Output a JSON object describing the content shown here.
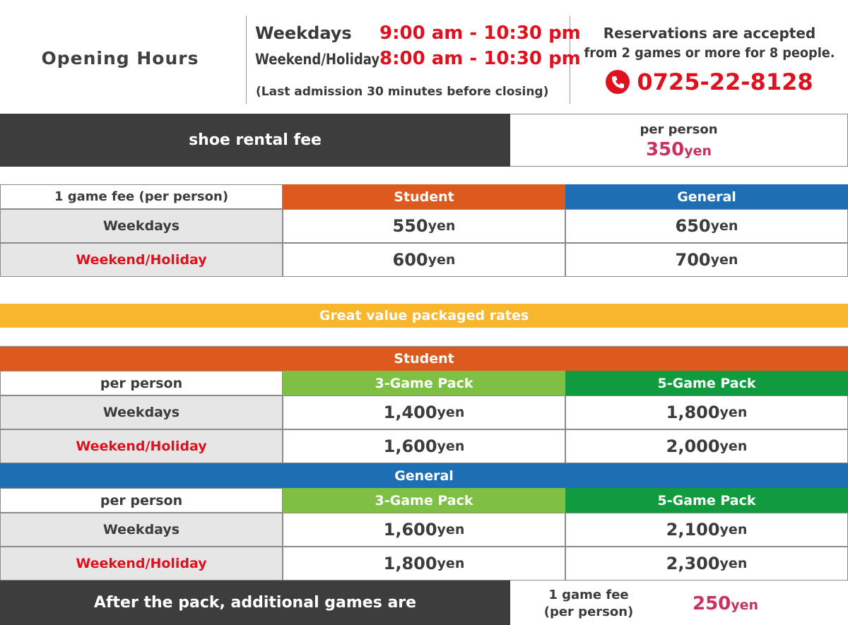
{
  "hours": {
    "title": "Opening Hours",
    "weekdays_label": "Weekdays",
    "weekdays_time": "9:00 am - 10:30 pm",
    "weekend_label": "Weekend/Holiday",
    "weekend_time": "8:00 am - 10:30 pm",
    "note": "(Last admission 30 minutes before closing)"
  },
  "reservation": {
    "line1": "Reservations are accepted",
    "line2": "from 2 games or more for 8 people.",
    "phone": "0725-22-8128",
    "icon": "phone-icon"
  },
  "shoe": {
    "label": "shoe rental fee",
    "per": "per person",
    "price": "350",
    "unit": "yen"
  },
  "single": {
    "header": "1 game fee (per person)",
    "col_student": "Student",
    "col_general": "General",
    "rows": [
      {
        "label": "Weekdays",
        "student": "550",
        "general": "650"
      },
      {
        "label": "Weekend/Holiday",
        "student": "600",
        "general": "700"
      }
    ],
    "unit": "yen"
  },
  "packages": {
    "banner": "Great value packaged rates",
    "unit": "yen",
    "groups": [
      {
        "name": "Student",
        "per": "per person",
        "col3": "3-Game Pack",
        "col5": "5-Game Pack",
        "rows": [
          {
            "label": "Weekdays",
            "p3": "1,400",
            "p5": "1,800"
          },
          {
            "label": "Weekend/Holiday",
            "p3": "1,600",
            "p5": "2,000"
          }
        ]
      },
      {
        "name": "General",
        "per": "per person",
        "col3": "3-Game Pack",
        "col5": "5-Game Pack",
        "rows": [
          {
            "label": "Weekdays",
            "p3": "1,600",
            "p5": "2,100"
          },
          {
            "label": "Weekend/Holiday",
            "p3": "1,800",
            "p5": "2,300"
          }
        ]
      }
    ]
  },
  "additional": {
    "label": "After the pack, additional games are",
    "fee_line1": "1 game fee",
    "fee_line2": "(per person)",
    "price": "250",
    "unit": "yen"
  },
  "colors": {
    "red": "#e0101e",
    "student": "#dc5a1e",
    "general": "#1e6eb4",
    "pack3": "#7dc043",
    "pack5": "#109b3e",
    "banner": "#f8b62d",
    "dark": "#3d3d3d"
  }
}
